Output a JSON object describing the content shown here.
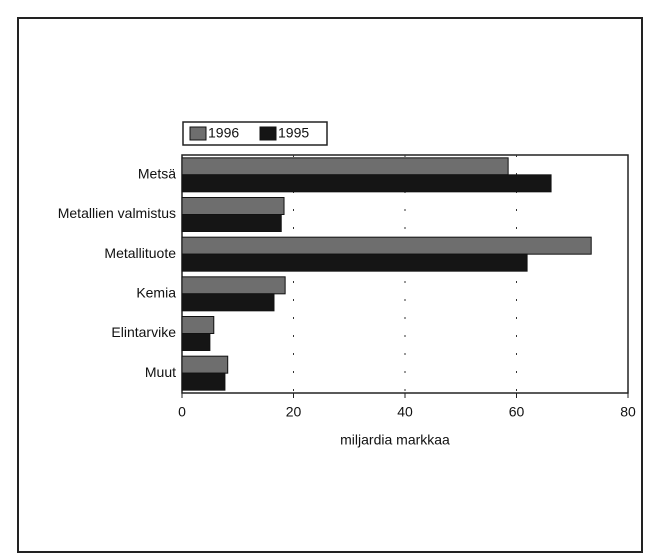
{
  "chart_data": {
    "type": "hbar",
    "categories": [
      "Metsä",
      "Metallien valmistus",
      "Metallituote",
      "Kemia",
      "Elintarvike",
      "Muut"
    ],
    "series": [
      {
        "name": "1996",
        "color": "#6e6e6e",
        "values": [
          58.5,
          18.3,
          73.4,
          18.5,
          5.7,
          8.2
        ]
      },
      {
        "name": "1995",
        "color": "#151515",
        "values": [
          66.2,
          17.8,
          61.9,
          16.5,
          5.0,
          7.7
        ]
      }
    ],
    "xlabel": "miljardia markkaa",
    "xlim": [
      0,
      80
    ],
    "xticks": [
      0,
      20,
      40,
      60,
      80
    ],
    "grid": true
  }
}
